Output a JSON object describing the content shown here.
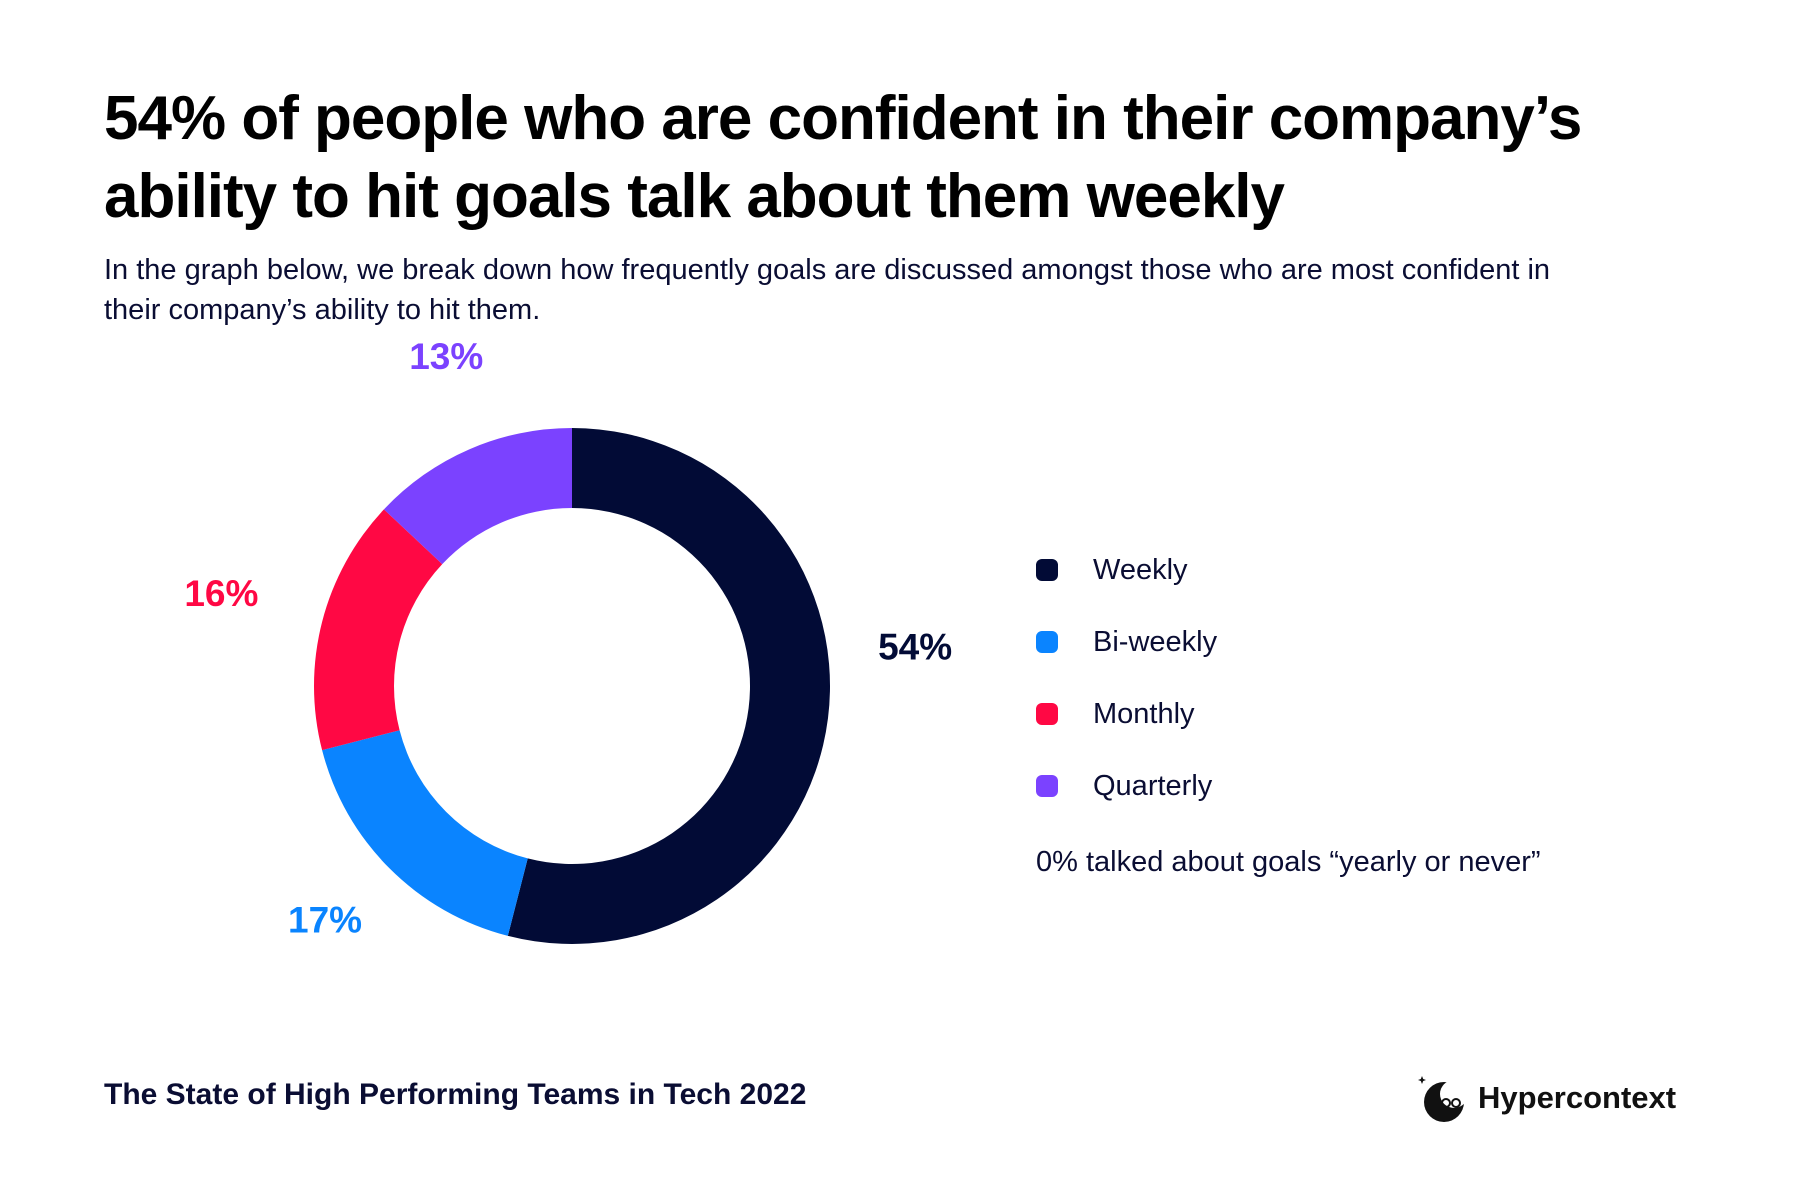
{
  "header": {
    "title": "54% of people who are confident in their company’s ability to hit goals talk about them weekly",
    "subtitle": "In the graph below, we break down how frequently goals are discussed amongst those who are most confident in their company’s ability to hit them."
  },
  "chart_data": {
    "type": "pie",
    "variant": "donut",
    "categories": [
      "Weekly",
      "Bi-weekly",
      "Monthly",
      "Quarterly"
    ],
    "values": [
      54,
      17,
      16,
      13
    ],
    "value_labels": [
      "54%",
      "17%",
      "16%",
      "13%"
    ],
    "colors": [
      "#020b36",
      "#0a84ff",
      "#ff0844",
      "#7b42ff"
    ],
    "legend_position": "right"
  },
  "legend": {
    "items": [
      {
        "label": "Weekly",
        "color": "#020b36"
      },
      {
        "label": "Bi-weekly",
        "color": "#0a84ff"
      },
      {
        "label": "Monthly",
        "color": "#ff0844"
      },
      {
        "label": "Quarterly",
        "color": "#7b42ff"
      }
    ],
    "note": "0% talked about goals “yearly or never”"
  },
  "footer": {
    "report_title": "The State of High Performing Teams in Tech 2022",
    "brand_name": "Hypercontext",
    "brand_icon": "hypercontext-logo-icon"
  }
}
